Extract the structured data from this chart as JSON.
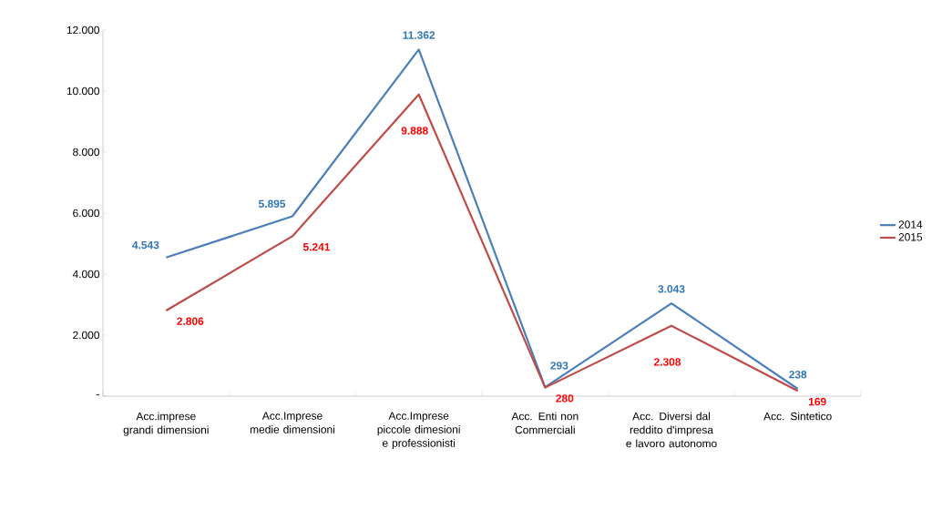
{
  "chart_data": {
    "type": "line",
    "categories": [
      "Acc.imprese grandi dimensioni",
      "Acc.Imprese medie dimensioni",
      "Acc.Imprese piccole dimesioni e professionisti",
      "Acc. Enti non Commerciali",
      "Acc. Diversi dal reddito d'impresa e lavoro autonomo",
      "Acc. Sintetico"
    ],
    "series": [
      {
        "name": "2014",
        "color": "#4a7ebb",
        "values": [
          4543,
          5895,
          11362,
          293,
          3043,
          238
        ],
        "value_labels": [
          "4.543",
          "5.895",
          "11.362",
          "293",
          "3.043",
          "238"
        ]
      },
      {
        "name": "2015",
        "color": "#be4b48",
        "values": [
          2806,
          5241,
          9888,
          280,
          2308,
          169
        ],
        "value_labels": [
          "2.806",
          "5.241",
          "9.888",
          "280",
          "2.308",
          "169"
        ]
      }
    ],
    "ylim": [
      0,
      12000
    ],
    "yticks": [
      {
        "value": 0,
        "label": "-"
      },
      {
        "value": 2000,
        "label": "2.000"
      },
      {
        "value": 4000,
        "label": "4.000"
      },
      {
        "value": 6000,
        "label": "6.000"
      },
      {
        "value": 8000,
        "label": "8.000"
      },
      {
        "value": 10000,
        "label": "10.000"
      },
      {
        "value": 12000,
        "label": "12.000"
      }
    ],
    "legend": "right",
    "grid": false,
    "marker": "none",
    "line_style": "solid"
  }
}
